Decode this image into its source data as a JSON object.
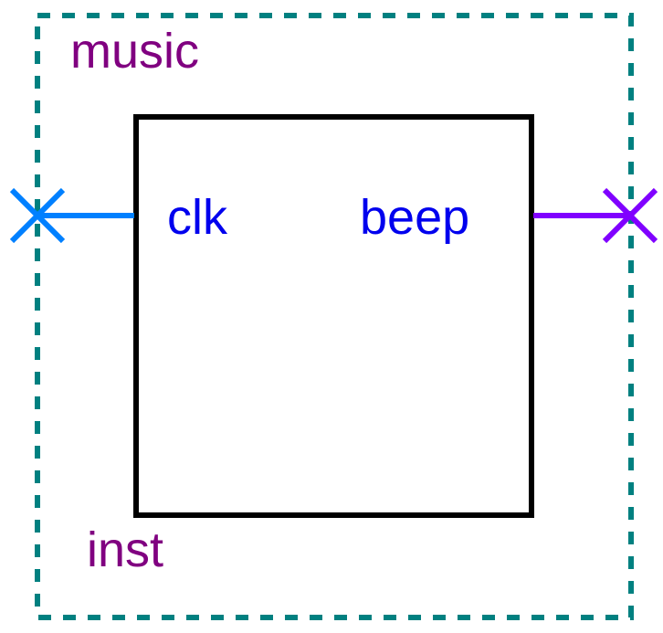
{
  "module": {
    "name": "music",
    "instance": "inst"
  },
  "ports": {
    "input": {
      "name": "clk"
    },
    "output": {
      "name": "beep"
    }
  },
  "colors": {
    "module_border": "#008080",
    "module_label": "#800080",
    "block_border": "#000000",
    "port_label": "#0000ee",
    "input_wire": "#0080ff",
    "output_wire": "#8000ff",
    "background": "#ffffff"
  },
  "icons": {
    "input_terminal": "x-cross-icon",
    "output_terminal": "x-cross-icon"
  }
}
